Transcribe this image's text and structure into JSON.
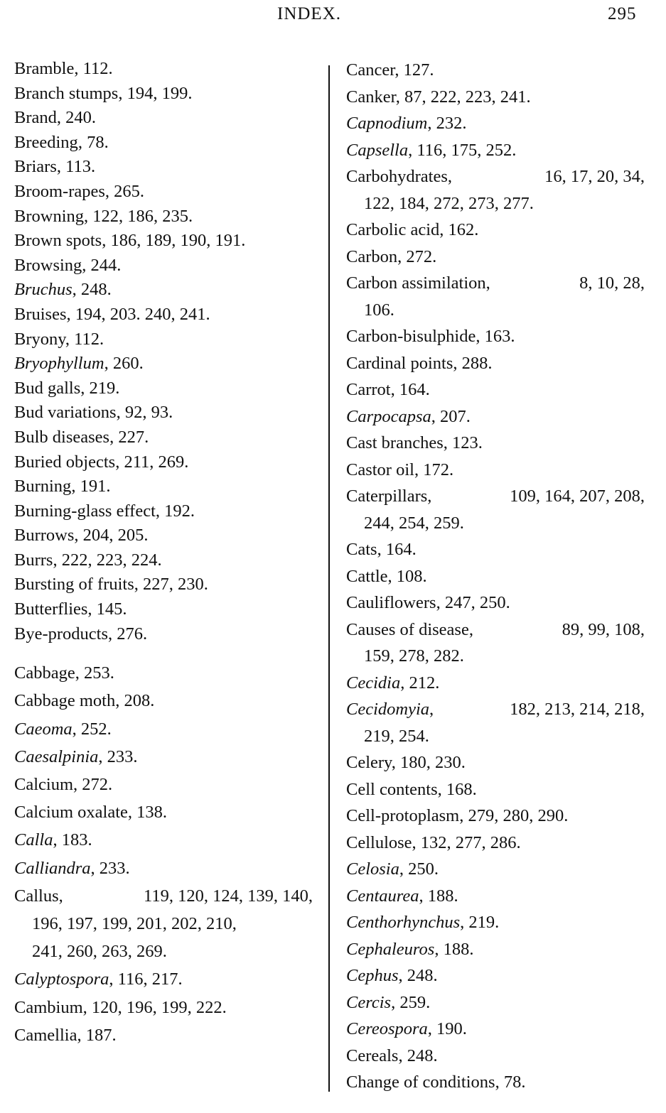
{
  "header": {
    "title": "INDEX.",
    "page_number": "295"
  },
  "left_column": {
    "groups": [
      [
        {
          "term": "Bramble",
          "pages": "112."
        },
        {
          "term": "Branch stumps",
          "pages": "194, 199."
        },
        {
          "term": "Brand",
          "pages": "240."
        },
        {
          "term": "Breeding",
          "pages": "78."
        },
        {
          "term": "Briars",
          "pages": "113."
        },
        {
          "term": "Broom-rapes",
          "pages": "265."
        },
        {
          "term": "Browning",
          "pages": "122, 186, 235."
        },
        {
          "term": "Brown spots",
          "pages": "186, 189, 190, 191."
        },
        {
          "term": "Browsing",
          "pages": "244."
        },
        {
          "term": "Bruchus",
          "italic": true,
          "pages": "248."
        },
        {
          "term": "Bruises",
          "pages": "194, 203. 240, 241."
        },
        {
          "term": "Bryony",
          "pages": "112."
        },
        {
          "term": "Bryophyllum",
          "italic": true,
          "pages": "260."
        },
        {
          "term": "Bud galls",
          "pages": "219."
        },
        {
          "term": "Bud variations",
          "pages": "92, 93."
        },
        {
          "term": "Bulb diseases",
          "pages": "227."
        },
        {
          "term": "Buried objects",
          "pages": "211, 269."
        },
        {
          "term": "Burning",
          "pages": "191."
        },
        {
          "term": "Burning-glass effect",
          "pages": "192."
        },
        {
          "term": "Burrows",
          "pages": "204, 205."
        },
        {
          "term": "Burrs",
          "pages": "222, 223, 224."
        },
        {
          "term": "Bursting of fruits",
          "pages": "227, 230."
        },
        {
          "term": "Butterflies",
          "pages": "145."
        },
        {
          "term": "Bye-products",
          "pages": "276."
        }
      ],
      [
        {
          "term": "Cabbage",
          "pages": "253."
        },
        {
          "term": "Cabbage moth",
          "pages": "208."
        },
        {
          "term": "Caeoma",
          "italic": true,
          "pages": "252."
        },
        {
          "term": "Caesalpinia",
          "italic": true,
          "pages": "233."
        },
        {
          "term": "Calcium",
          "pages": "272."
        },
        {
          "term": "Calcium oxalate",
          "pages": "138."
        },
        {
          "term": "Calla",
          "italic": true,
          "pages": "183."
        },
        {
          "term": "Calliandra",
          "italic": true,
          "pages": "233."
        },
        {
          "term": "Callus",
          "pages": "119, 120, 124, 139, 140,",
          "continued": [
            "196, 197, 199, 201, 202, 210,",
            "241, 260, 263, 269."
          ]
        },
        {
          "term": "Calyptospora",
          "italic": true,
          "pages": "116, 217."
        },
        {
          "term": "Cambium",
          "pages": "120, 196, 199, 222."
        },
        {
          "term": "Camellia",
          "pages": "187."
        }
      ]
    ]
  },
  "right_column": {
    "entries": [
      {
        "term": "Cancer",
        "pages": "127."
      },
      {
        "term": "Canker",
        "pages": "87, 222, 223, 241."
      },
      {
        "term": "Capnodium",
        "italic": true,
        "pages": "232."
      },
      {
        "term": "Capsella",
        "italic": true,
        "pages": "116, 175, 252."
      },
      {
        "term": "Carbohydrates",
        "pages": "16, 17, 20, 34,",
        "continued": [
          "122, 184, 272, 273, 277."
        ]
      },
      {
        "term": "Carbolic acid",
        "pages": "162."
      },
      {
        "term": "Carbon",
        "pages": "272."
      },
      {
        "term": "Carbon assimilation",
        "pages": "8, 10, 28,",
        "continued": [
          "106."
        ]
      },
      {
        "term": "Carbon-bisulphide",
        "pages": "163."
      },
      {
        "term": "Cardinal points",
        "pages": "288."
      },
      {
        "term": "Carrot",
        "pages": "164."
      },
      {
        "term": "Carpocapsa",
        "italic": true,
        "pages": "207."
      },
      {
        "term": "Cast branches",
        "pages": "123."
      },
      {
        "term": "Castor oil",
        "pages": "172."
      },
      {
        "term": "Caterpillars",
        "pages": "109, 164, 207, 208,",
        "continued": [
          "244, 254, 259."
        ]
      },
      {
        "term": "Cats",
        "pages": "164."
      },
      {
        "term": "Cattle",
        "pages": "108."
      },
      {
        "term": "Cauliflowers",
        "pages": "247, 250."
      },
      {
        "term": "Causes of disease",
        "pages": "89, 99, 108,",
        "continued": [
          "159, 278, 282."
        ]
      },
      {
        "term": "Cecidia",
        "italic": true,
        "pages": "212."
      },
      {
        "term": "Cecidomyia",
        "italic": true,
        "pages": "182, 213, 214, 218,",
        "continued": [
          "219, 254."
        ]
      },
      {
        "term": "Celery",
        "pages": "180, 230."
      },
      {
        "term": "Cell contents",
        "pages": "168."
      },
      {
        "term": "Cell-protoplasm",
        "pages": "279, 280, 290."
      },
      {
        "term": "Cellulose",
        "pages": "132, 277, 286."
      },
      {
        "term": "Celosia",
        "italic": true,
        "pages": "250."
      },
      {
        "term": "Centaurea",
        "italic": true,
        "pages": "188."
      },
      {
        "term": "Centhorhynchus",
        "italic": true,
        "pages": "219."
      },
      {
        "term": "Cephaleuros",
        "italic": true,
        "pages": "188."
      },
      {
        "term": "Cephus",
        "italic": true,
        "pages": "248."
      },
      {
        "term": "Cercis",
        "italic": true,
        "pages": "259."
      },
      {
        "term": "Cereospora",
        "italic": true,
        "pages": "190."
      },
      {
        "term": "Cereals",
        "pages": "248."
      },
      {
        "term": "Change of conditions",
        "pages": "78."
      }
    ]
  }
}
